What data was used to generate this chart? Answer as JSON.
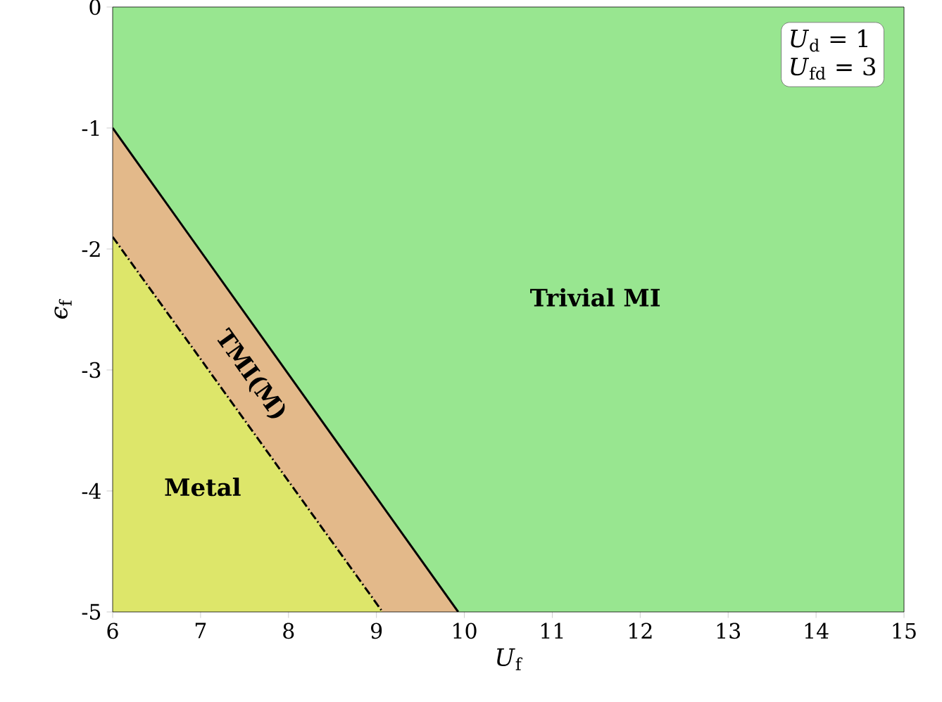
{
  "chart_data": {
    "type": "area",
    "xlabel": "*U*$_{f}$",
    "ylabel": "*ϵ*$_{f}$",
    "xlim": [
      6,
      15
    ],
    "ylim": [
      -5,
      0
    ],
    "xticks": [
      6,
      7,
      8,
      9,
      10,
      11,
      12,
      13,
      14,
      15
    ],
    "yticks": [
      -5,
      -4,
      -3,
      -2,
      -1,
      0
    ],
    "grid": false,
    "marker": "none",
    "bands": [
      {
        "axis": "y",
        "from": -5,
        "to": 0,
        "label": "Trivial MI",
        "color": "#98e690"
      }
    ],
    "series": [
      {
        "name": "TMI(M)",
        "color": "#e3b98a",
        "x": [
          6,
          9.93
        ],
        "values": [
          -1,
          -5
        ],
        "line_style": "solid"
      },
      {
        "name": "Metal",
        "color": "#dde66a",
        "x": [
          6,
          9.07
        ],
        "values": [
          -1.9,
          -5
        ],
        "line_style": "dashed"
      }
    ],
    "annotations": [
      "*U*$_{d}$ = 1",
      "*U*$_{fd}$ = 3"
    ]
  }
}
